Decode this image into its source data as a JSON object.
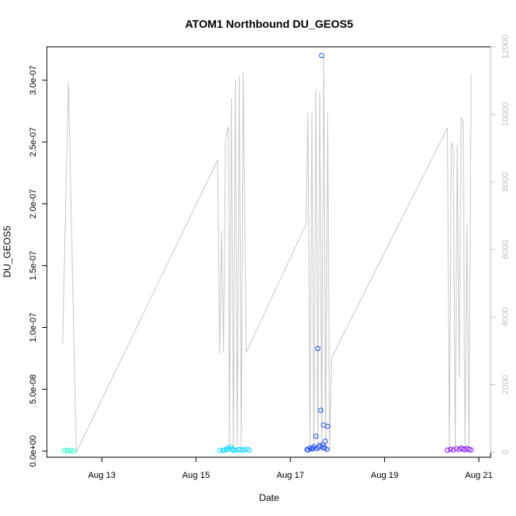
{
  "chart_data": {
    "type": "scatter",
    "title": "ATOM1 Northbound DU_GEOS5",
    "xlabel": "Date",
    "ylabel": "DU_GEOS5",
    "x_tick_labels": [
      "Aug 13",
      "Aug 15",
      "Aug 17",
      "Aug 19",
      "Aug 21"
    ],
    "x_tick_dates": [
      "2016-08-13",
      "2016-08-15",
      "2016-08-17",
      "2016-08-19",
      "2016-08-21"
    ],
    "xlim": [
      "2016-08-11T20:00",
      "2016-08-21T06:00"
    ],
    "ylim": [
      -5e-09,
      3.27e-07
    ],
    "y_ticks": [
      0,
      5e-08,
      1e-07,
      1.5e-07,
      2e-07,
      2.5e-07,
      3e-07
    ],
    "y_tick_labels": [
      "0.0e+00",
      "5.0e-08",
      "1.0e-07",
      "1.5e-07",
      "2.0e-07",
      "2.5e-07",
      "3.0e-07"
    ],
    "y2_ticks": [
      0,
      2000,
      4000,
      6000,
      8000,
      10000,
      12000
    ],
    "y2_tick_labels": [
      "0",
      "2000",
      "4000",
      "6000",
      "8000",
      "10000",
      "12000"
    ],
    "y2lim": [
      -150,
      12000
    ],
    "grid": false,
    "series": [
      {
        "color": "#1affbf",
        "points": [
          [
            "2016-08-12T05:00",
            4e-10
          ],
          [
            "2016-08-12T06:30",
            3e-10
          ],
          [
            "2016-08-12T08:00",
            5e-10
          ],
          [
            "2016-08-12T09:30",
            2e-10
          ]
        ]
      },
      {
        "color": "#1ad8ff",
        "points": [
          [
            "2016-08-15T12:00",
            4e-10
          ],
          [
            "2016-08-15T13:30",
            6e-10
          ],
          [
            "2016-08-15T14:30",
            8e-10
          ],
          [
            "2016-08-15T15:30",
            1.2e-09
          ],
          [
            "2016-08-15T16:00",
            2.5e-09
          ],
          [
            "2016-08-15T17:00",
            1.8e-09
          ],
          [
            "2016-08-15T17:45",
            3.5e-09
          ],
          [
            "2016-08-15T18:30",
            1.5e-09
          ],
          [
            "2016-08-15T19:00",
            6e-10
          ],
          [
            "2016-08-15T20:00",
            9e-10
          ],
          [
            "2016-08-15T21:30",
            1.1e-09
          ],
          [
            "2016-08-15T22:30",
            1.4e-09
          ],
          [
            "2016-08-15T23:30",
            8e-10
          ],
          [
            "2016-08-16T00:30",
            1e-09
          ],
          [
            "2016-08-16T02:00",
            1.6e-09
          ],
          [
            "2016-08-16T03:00",
            7e-10
          ]
        ]
      },
      {
        "color": "#1a4cff",
        "points": [
          [
            "2016-08-17T09:00",
            1e-09
          ],
          [
            "2016-08-17T10:00",
            2.5e-09
          ],
          [
            "2016-08-17T11:00",
            1.8e-09
          ],
          [
            "2016-08-17T12:00",
            3.5e-09
          ],
          [
            "2016-08-17T13:00",
            1.2e-08
          ],
          [
            "2016-08-17T13:30",
            2e-09
          ],
          [
            "2016-08-17T14:00",
            8.3e-08
          ],
          [
            "2016-08-17T14:30",
            3e-09
          ],
          [
            "2016-08-17T15:00",
            4.5e-09
          ],
          [
            "2016-08-17T15:30",
            3.3e-08
          ],
          [
            "2016-08-17T16:00",
            3.2e-07
          ],
          [
            "2016-08-17T16:30",
            5e-09
          ],
          [
            "2016-08-17T17:00",
            2.1e-08
          ],
          [
            "2016-08-17T17:30",
            2.5e-09
          ],
          [
            "2016-08-17T17:45",
            8e-09
          ],
          [
            "2016-08-17T18:30",
            1.5e-09
          ],
          [
            "2016-08-17T19:00",
            2e-08
          ],
          [
            "2016-08-17T08:30",
            1.2e-09
          ],
          [
            "2016-08-17T11:30",
            2.2e-09
          ],
          [
            "2016-08-17T16:45",
            3e-09
          ]
        ]
      },
      {
        "color": "#8a1aff",
        "points": [
          [
            "2016-08-20T08:00",
            8e-10
          ],
          [
            "2016-08-20T09:30",
            1.5e-09
          ],
          [
            "2016-08-20T11:00",
            1e-09
          ],
          [
            "2016-08-20T12:30",
            2e-09
          ],
          [
            "2016-08-20T14:00",
            1.2e-09
          ],
          [
            "2016-08-20T15:00",
            2.5e-09
          ],
          [
            "2016-08-20T16:00",
            1.7e-09
          ],
          [
            "2016-08-20T17:00",
            1.1e-09
          ],
          [
            "2016-08-20T18:00",
            2.1e-09
          ],
          [
            "2016-08-20T19:00",
            1.4e-09
          ],
          [
            "2016-08-20T20:00",
            9e-10
          ]
        ]
      }
    ],
    "secondary_line": {
      "color": "#c8c8c8",
      "axis": "right",
      "points": [
        [
          "2016-08-12T04:00",
          3200
        ],
        [
          "2016-08-12T07:00",
          10950
        ],
        [
          "2016-08-12T11:00",
          0
        ],
        [
          "2016-08-15T11:00",
          8650
        ],
        [
          "2016-08-15T12:00",
          2900
        ],
        [
          "2016-08-15T13:00",
          6550
        ],
        [
          "2016-08-15T14:00",
          2950
        ],
        [
          "2016-08-15T15:00",
          9250
        ],
        [
          "2016-08-15T16:30",
          9650
        ],
        [
          "2016-08-15T17:00",
          100
        ],
        [
          "2016-08-15T18:00",
          10480
        ],
        [
          "2016-08-15T19:00",
          100
        ],
        [
          "2016-08-15T20:00",
          11050
        ],
        [
          "2016-08-15T21:00",
          200
        ],
        [
          "2016-08-15T22:00",
          11150
        ],
        [
          "2016-08-15T23:00",
          200
        ],
        [
          "2016-08-16T00:00",
          11270
        ],
        [
          "2016-08-16T01:30",
          2950
        ],
        [
          "2016-08-17T08:00",
          6750
        ],
        [
          "2016-08-17T09:00",
          10050
        ],
        [
          "2016-08-17T10:00",
          0
        ],
        [
          "2016-08-17T11:00",
          10050
        ],
        [
          "2016-08-17T12:00",
          0
        ],
        [
          "2016-08-17T13:00",
          10750
        ],
        [
          "2016-08-17T14:00",
          0
        ],
        [
          "2016-08-17T15:00",
          10650
        ],
        [
          "2016-08-17T16:00",
          0
        ],
        [
          "2016-08-17T17:00",
          11780
        ],
        [
          "2016-08-17T18:00",
          0
        ],
        [
          "2016-08-17T19:00",
          10050
        ],
        [
          "2016-08-17T20:00",
          0
        ],
        [
          "2016-08-17T21:00",
          2800
        ],
        [
          "2016-08-20T08:00",
          9600
        ],
        [
          "2016-08-20T09:00",
          0
        ],
        [
          "2016-08-20T10:00",
          9180
        ],
        [
          "2016-08-20T11:00",
          9020
        ],
        [
          "2016-08-20T12:00",
          100
        ],
        [
          "2016-08-20T13:00",
          9100
        ],
        [
          "2016-08-20T14:00",
          2200
        ],
        [
          "2016-08-20T15:00",
          9900
        ],
        [
          "2016-08-20T16:00",
          9800
        ],
        [
          "2016-08-20T17:00",
          100
        ],
        [
          "2016-08-20T18:00",
          6750
        ],
        [
          "2016-08-20T19:00",
          0
        ],
        [
          "2016-08-20T20:00",
          11200
        ]
      ]
    }
  }
}
